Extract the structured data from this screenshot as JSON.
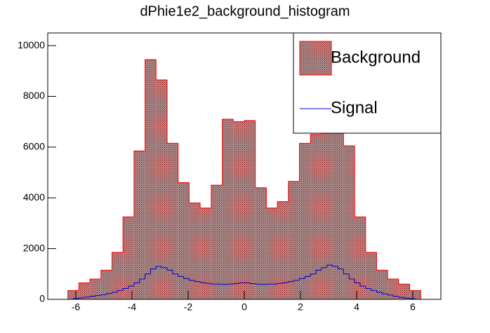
{
  "chart_data": {
    "type": "histogram",
    "title": "dPhie1e2_background_histogram",
    "xlim": [
      -7,
      7
    ],
    "ylim": [
      0,
      10500
    ],
    "xticks": [
      -6,
      -4,
      -2,
      0,
      2,
      4,
      6
    ],
    "yticks": [
      0,
      2000,
      4000,
      6000,
      8000,
      10000
    ],
    "legend": "top-right",
    "series": [
      {
        "name": "Background",
        "color": "#ff0000",
        "bins": [
          -6.2832,
          -5.8905,
          -5.4978,
          -5.1051,
          -4.7124,
          -4.3197,
          -3.927,
          -3.5343,
          -3.1416,
          -2.7489,
          -2.3562,
          -1.9635,
          -1.5708,
          -1.1781,
          -0.7854,
          -0.3927,
          0,
          0.3927,
          0.7854,
          1.1781,
          1.5708,
          1.9635,
          2.3562,
          2.7489,
          3.1416,
          3.5343,
          3.927,
          4.3197,
          4.7124,
          5.1051,
          5.4978,
          5.8905,
          6.2832
        ],
        "values": [
          350,
          650,
          800,
          1150,
          1850,
          3250,
          5850,
          9450,
          8650,
          6150,
          4600,
          3800,
          3600,
          4500,
          7100,
          7000,
          7050,
          4400,
          3600,
          3850,
          4650,
          6150,
          6500,
          6600,
          6700,
          6050,
          3250,
          1850,
          1150,
          800,
          600,
          350
        ]
      },
      {
        "name": "Signal",
        "color": "#0000cc",
        "bins": [
          -6.2832,
          -6.0868,
          -5.8905,
          -5.6941,
          -5.4978,
          -5.3014,
          -5.1051,
          -4.9087,
          -4.7124,
          -4.516,
          -4.3197,
          -4.1233,
          -3.927,
          -3.7306,
          -3.5343,
          -3.3379,
          -3.1416,
          -2.9452,
          -2.7489,
          -2.5525,
          -2.3562,
          -2.1598,
          -1.9635,
          -1.7671,
          -1.5708,
          -1.3744,
          -1.1781,
          -0.9817,
          -0.7854,
          -0.589,
          -0.3927,
          -0.1963,
          0,
          0.1963,
          0.3927,
          0.589,
          0.7854,
          0.9817,
          1.1781,
          1.3744,
          1.5708,
          1.7671,
          1.9635,
          2.1598,
          2.3562,
          2.5525,
          2.7489,
          2.9452,
          3.1416,
          3.3379,
          3.5343,
          3.7306,
          3.927,
          4.1233,
          4.3197,
          4.516,
          4.7124,
          4.9087,
          5.1051,
          5.3014,
          5.4978,
          5.6941,
          5.8905,
          6.0868,
          6.2832
        ],
        "values": [
          0,
          30,
          60,
          90,
          120,
          150,
          180,
          230,
          280,
          350,
          430,
          520,
          650,
          800,
          1000,
          1200,
          1300,
          1250,
          1150,
          1000,
          900,
          820,
          750,
          700,
          660,
          630,
          600,
          600,
          590,
          600,
          620,
          650,
          650,
          620,
          600,
          590,
          600,
          600,
          630,
          660,
          700,
          750,
          820,
          900,
          1000,
          1150,
          1250,
          1350,
          1300,
          1200,
          1000,
          800,
          650,
          520,
          430,
          350,
          280,
          220,
          170,
          120,
          80,
          50,
          25,
          0
        ]
      }
    ]
  }
}
